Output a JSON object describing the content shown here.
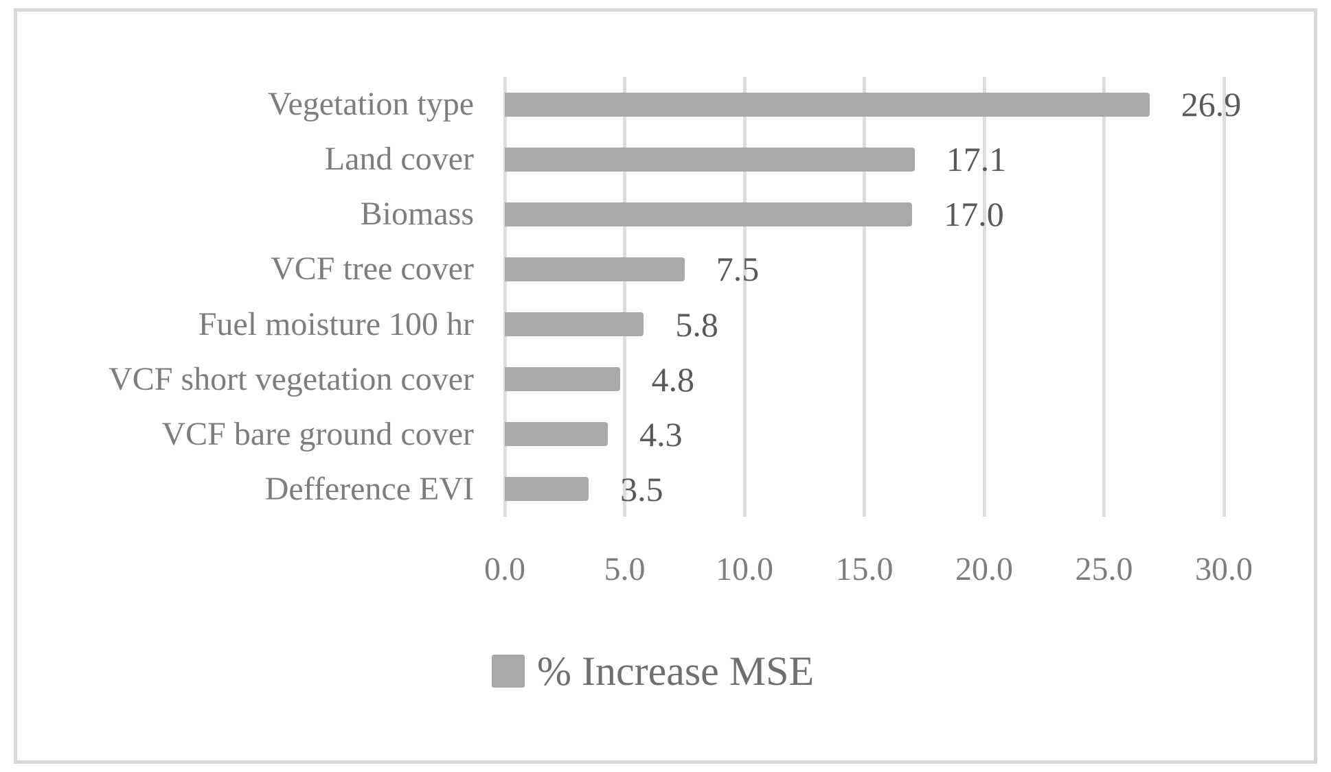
{
  "figure": {
    "background_color": "#ffffff",
    "border_color": "#d7d7d7"
  },
  "chart_data": {
    "type": "bar",
    "orientation": "horizontal",
    "title": "",
    "xlabel": "",
    "ylabel": "",
    "categories": [
      "Vegetation type",
      "Land cover",
      "Biomass",
      "VCF tree cover",
      "Fuel moisture 100 hr",
      "VCF short vegetation cover",
      "VCF bare ground cover",
      "Defference EVI"
    ],
    "values": [
      26.9,
      17.1,
      17.0,
      7.5,
      5.8,
      4.8,
      4.3,
      3.5
    ],
    "value_labels": [
      "26.9",
      "17.1",
      "17.0",
      "7.5",
      "5.8",
      "4.8",
      "4.3",
      "3.5"
    ],
    "xlim": [
      0,
      30
    ],
    "x_tick_values": [
      0,
      5,
      10,
      15,
      20,
      25,
      30
    ],
    "x_tick_labels": [
      "0.0",
      "5.0",
      "10.0",
      "15.0",
      "20.0",
      "25.0",
      "30.0"
    ],
    "grid": "vertical-gridlines-on",
    "legend_position": "bottom-center",
    "legend": {
      "label": "% Increase MSE"
    },
    "colors": {
      "bar": "#a8a8a8",
      "gridline": "#dcdcdc",
      "category_label": "#7d7d7d",
      "value_label": "#595959",
      "tick_label": "#7d7d7d",
      "legend_label": "#6f6f6f"
    }
  }
}
